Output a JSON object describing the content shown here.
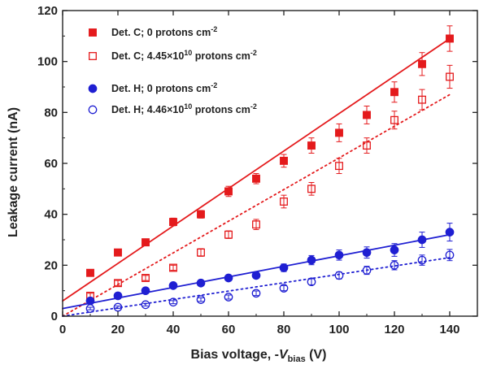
{
  "chart_data": {
    "type": "scatter",
    "xlabel_main": "Bias voltage, -",
    "xlabel_var": "V",
    "xlabel_sub": "bias",
    "xlabel_unit": " (V)",
    "ylabel": "Leakage current (nA)",
    "xlim": [
      0,
      150
    ],
    "ylim": [
      0,
      120
    ],
    "x_ticks": [
      0,
      20,
      40,
      60,
      80,
      100,
      120,
      140
    ],
    "y_ticks": [
      0,
      20,
      40,
      60,
      80,
      100,
      120
    ],
    "x_tick_labels": [
      "0",
      "20",
      "40",
      "60",
      "80",
      "100",
      "120",
      "140"
    ],
    "y_tick_labels": [
      "0",
      "20",
      "40",
      "60",
      "80",
      "100",
      "120"
    ],
    "grid": false,
    "legend_position": "top-left",
    "series": [
      {
        "name": "Det. C; 0 protons cm",
        "name_sup": "-2",
        "color": "#e41a1c",
        "marker": "square-filled",
        "x": [
          10,
          20,
          30,
          40,
          50,
          60,
          70,
          80,
          90,
          100,
          110,
          120,
          130,
          140
        ],
        "y": [
          17,
          25,
          29,
          37,
          40,
          49,
          54,
          61,
          67,
          72,
          79,
          88,
          99,
          109
        ],
        "err": [
          1,
          1,
          1,
          1.5,
          1.5,
          2,
          2,
          2.5,
          3,
          3.5,
          3.5,
          4,
          4.5,
          5
        ],
        "fit": {
          "style": "solid",
          "x": [
            0,
            140
          ],
          "y": [
            6,
            109
          ]
        }
      },
      {
        "name": "Det. C; 4.45×10",
        "name_sup": "10",
        "name_tail": " protons cm",
        "name_tail_sup": "-2",
        "color": "#e41a1c",
        "marker": "square-open",
        "x": [
          10,
          20,
          30,
          40,
          50,
          60,
          70,
          80,
          90,
          100,
          110,
          120,
          130,
          140
        ],
        "y": [
          8,
          13,
          15,
          19,
          25,
          32,
          36,
          45,
          50,
          59,
          67,
          77,
          85,
          94
        ],
        "err": [
          1,
          1,
          1,
          1,
          1.5,
          1.5,
          2,
          2.5,
          2.5,
          3,
          3,
          3.5,
          4,
          4.5
        ],
        "fit": {
          "style": "dotted",
          "x": [
            0,
            140
          ],
          "y": [
            0,
            87
          ]
        }
      },
      {
        "name": "Det. H; 0 protons cm",
        "name_sup": "-2",
        "color": "#1f1fd2",
        "marker": "circle-filled",
        "x": [
          10,
          20,
          30,
          40,
          50,
          60,
          70,
          80,
          90,
          100,
          110,
          120,
          130,
          140
        ],
        "y": [
          6,
          8,
          10,
          12,
          13,
          15,
          16,
          19,
          22,
          24,
          25,
          26,
          30,
          33
        ],
        "err": [
          0.8,
          0.8,
          1,
          1,
          1,
          1.2,
          1.2,
          1.5,
          1.8,
          2,
          2.2,
          2.5,
          3,
          3.5
        ],
        "fit": {
          "style": "solid",
          "x": [
            0,
            140
          ],
          "y": [
            3,
            32
          ]
        }
      },
      {
        "name": "Det. H; 4.46×10",
        "name_sup": "10",
        "name_tail": " protons cm",
        "name_tail_sup": "-2",
        "color": "#1f1fd2",
        "marker": "circle-open",
        "x": [
          10,
          20,
          30,
          40,
          50,
          60,
          70,
          80,
          90,
          100,
          110,
          120,
          130,
          140
        ],
        "y": [
          3,
          3.5,
          4.5,
          5.5,
          6.5,
          7.5,
          9,
          11,
          13.5,
          16,
          18,
          20,
          22,
          24
        ],
        "err": [
          0.5,
          0.5,
          0.5,
          0.6,
          0.7,
          0.8,
          0.9,
          1,
          1.2,
          1.4,
          1.6,
          1.8,
          2,
          2.2
        ],
        "fit": {
          "style": "dotted",
          "x": [
            0,
            140
          ],
          "y": [
            0,
            23
          ]
        }
      }
    ]
  }
}
